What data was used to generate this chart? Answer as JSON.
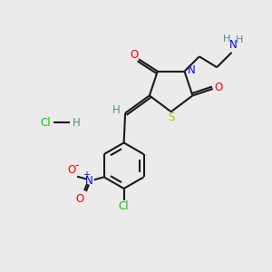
{
  "bg_color": "#ebebeb",
  "bond_color": "#1a1a1a",
  "atom_colors": {
    "O": "#ff0000",
    "N": "#0000ff",
    "S": "#bbbb00",
    "Cl": "#00cc00",
    "H": "#5a8a8a",
    "NO2_N": "#0000ff",
    "NO2_O": "#ff0000",
    "NH2_N": "#0000ff"
  }
}
